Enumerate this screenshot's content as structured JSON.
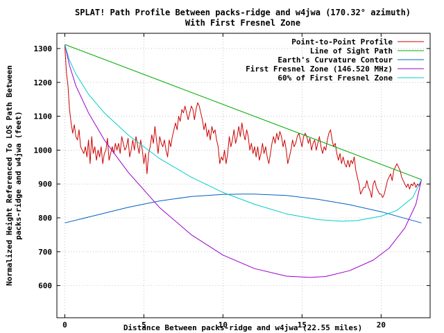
{
  "chart_data": {
    "type": "line",
    "title": "SPLAT! Path Profile Between packs-ridge and w4jwa (170.32° azimuth)",
    "subtitle": "With First Fresnel Zone",
    "xlabel": "Distance Between packs-ridge and w4jwa (22.55 miles)",
    "ylabel_lines": [
      "Normalized Height Referenced To LOS Path Between",
      "packs-ridge and w4jwa (feet)"
    ],
    "xlim": [
      -0.5,
      23.1
    ],
    "ylim": [
      505,
      1345
    ],
    "x_ticks": [
      0,
      5,
      10,
      15,
      20
    ],
    "y_ticks": [
      600,
      700,
      800,
      900,
      1000,
      1100,
      1200,
      1300
    ],
    "grid": true,
    "legend_position": "top-right",
    "series": [
      {
        "name": "Point-to-Point Profile",
        "color": "#cc0000",
        "points": [
          [
            0.0,
            1310
          ],
          [
            0.1,
            1230
          ],
          [
            0.2,
            1190
          ],
          [
            0.3,
            1120
          ],
          [
            0.4,
            1080
          ],
          [
            0.5,
            1050
          ],
          [
            0.6,
            1075
          ],
          [
            0.7,
            1040
          ],
          [
            0.8,
            1030
          ],
          [
            0.9,
            1060
          ],
          [
            1.0,
            1010
          ],
          [
            1.1,
            1000
          ],
          [
            1.2,
            990
          ],
          [
            1.3,
            1010
          ],
          [
            1.4,
            980
          ],
          [
            1.5,
            1030
          ],
          [
            1.6,
            960
          ],
          [
            1.7,
            1040
          ],
          [
            1.8,
            990
          ],
          [
            1.9,
            1010
          ],
          [
            2.0,
            970
          ],
          [
            2.1,
            1000
          ],
          [
            2.2,
            980
          ],
          [
            2.3,
            1010
          ],
          [
            2.4,
            960
          ],
          [
            2.5,
            990
          ],
          [
            2.6,
            1000
          ],
          [
            2.7,
            1035
          ],
          [
            2.8,
            970
          ],
          [
            2.9,
            990
          ],
          [
            3.0,
            1010
          ],
          [
            3.1,
            990
          ],
          [
            3.2,
            1020
          ],
          [
            3.3,
            1000
          ],
          [
            3.4,
            1020
          ],
          [
            3.5,
            990
          ],
          [
            3.6,
            1040
          ],
          [
            3.7,
            1020
          ],
          [
            3.8,
            1000
          ],
          [
            3.9,
            1010
          ],
          [
            4.0,
            1035
          ],
          [
            4.1,
            980
          ],
          [
            4.2,
            1000
          ],
          [
            4.3,
            1030
          ],
          [
            4.4,
            1000
          ],
          [
            4.5,
            1040
          ],
          [
            4.6,
            1015
          ],
          [
            4.7,
            990
          ],
          [
            4.8,
            1030
          ],
          [
            4.9,
            1000
          ],
          [
            5.0,
            960
          ],
          [
            5.1,
            990
          ],
          [
            5.2,
            930
          ],
          [
            5.3,
            990
          ],
          [
            5.4,
            1010
          ],
          [
            5.5,
            1045
          ],
          [
            5.6,
            1020
          ],
          [
            5.7,
            1070
          ],
          [
            5.8,
            1030
          ],
          [
            5.9,
            990
          ],
          [
            6.0,
            1040
          ],
          [
            6.1,
            1020
          ],
          [
            6.2,
            1010
          ],
          [
            6.3,
            1030
          ],
          [
            6.4,
            1000
          ],
          [
            6.5,
            980
          ],
          [
            6.6,
            1030
          ],
          [
            6.7,
            1010
          ],
          [
            6.8,
            1040
          ],
          [
            6.9,
            1060
          ],
          [
            7.0,
            1080
          ],
          [
            7.1,
            1060
          ],
          [
            7.2,
            1100
          ],
          [
            7.3,
            1085
          ],
          [
            7.4,
            1120
          ],
          [
            7.5,
            1110
          ],
          [
            7.6,
            1130
          ],
          [
            7.7,
            1110
          ],
          [
            7.8,
            1090
          ],
          [
            7.9,
            1110
          ],
          [
            8.0,
            1130
          ],
          [
            8.1,
            1120
          ],
          [
            8.2,
            1090
          ],
          [
            8.3,
            1120
          ],
          [
            8.4,
            1140
          ],
          [
            8.5,
            1130
          ],
          [
            8.6,
            1110
          ],
          [
            8.7,
            1090
          ],
          [
            8.8,
            1060
          ],
          [
            8.9,
            1080
          ],
          [
            9.0,
            1040
          ],
          [
            9.1,
            1060
          ],
          [
            9.2,
            1030
          ],
          [
            9.3,
            1070
          ],
          [
            9.4,
            1050
          ],
          [
            9.5,
            1060
          ],
          [
            9.6,
            1030
          ],
          [
            9.7,
            1010
          ],
          [
            9.8,
            960
          ],
          [
            9.9,
            980
          ],
          [
            10.0,
            970
          ],
          [
            10.1,
            1000
          ],
          [
            10.2,
            960
          ],
          [
            10.3,
            990
          ],
          [
            10.4,
            1040
          ],
          [
            10.5,
            1010
          ],
          [
            10.6,
            1030
          ],
          [
            10.7,
            1060
          ],
          [
            10.8,
            1020
          ],
          [
            10.9,
            1040
          ],
          [
            11.0,
            1070
          ],
          [
            11.1,
            1040
          ],
          [
            11.2,
            1080
          ],
          [
            11.3,
            1050
          ],
          [
            11.4,
            1030
          ],
          [
            11.5,
            1060
          ],
          [
            11.6,
            1040
          ],
          [
            11.7,
            1000
          ],
          [
            11.8,
            1020
          ],
          [
            11.9,
            990
          ],
          [
            12.0,
            1010
          ],
          [
            12.1,
            980
          ],
          [
            12.2,
            1010
          ],
          [
            12.3,
            970
          ],
          [
            12.4,
            990
          ],
          [
            12.5,
            1020
          ],
          [
            12.6,
            990
          ],
          [
            12.7,
            1010
          ],
          [
            12.8,
            980
          ],
          [
            12.9,
            960
          ],
          [
            13.0,
            990
          ],
          [
            13.1,
            1020
          ],
          [
            13.2,
            1040
          ],
          [
            13.3,
            1020
          ],
          [
            13.4,
            1050
          ],
          [
            13.5,
            1030
          ],
          [
            13.6,
            1055
          ],
          [
            13.7,
            1040
          ],
          [
            13.8,
            1010
          ],
          [
            13.9,
            1030
          ],
          [
            14.0,
            1000
          ],
          [
            14.1,
            960
          ],
          [
            14.2,
            980
          ],
          [
            14.3,
            1000
          ],
          [
            14.4,
            1030
          ],
          [
            14.5,
            1010
          ],
          [
            14.6,
            1020
          ],
          [
            14.7,
            1040
          ],
          [
            14.8,
            1050
          ],
          [
            14.9,
            1030
          ],
          [
            15.0,
            1010
          ],
          [
            15.1,
            1040
          ],
          [
            15.2,
            1050
          ],
          [
            15.3,
            1040
          ],
          [
            15.4,
            1020
          ],
          [
            15.5,
            1035
          ],
          [
            15.6,
            1000
          ],
          [
            15.7,
            1020
          ],
          [
            15.8,
            1030
          ],
          [
            15.9,
            1000
          ],
          [
            16.0,
            1020
          ],
          [
            16.1,
            1040
          ],
          [
            16.2,
            1010
          ],
          [
            16.3,
            990
          ],
          [
            16.4,
            1010
          ],
          [
            16.5,
            1000
          ],
          [
            16.6,
            1030
          ],
          [
            16.7,
            1050
          ],
          [
            16.8,
            1060
          ],
          [
            16.9,
            1030
          ],
          [
            17.0,
            1010
          ],
          [
            17.1,
            1020
          ],
          [
            17.2,
            990
          ],
          [
            17.3,
            970
          ],
          [
            17.4,
            990
          ],
          [
            17.5,
            960
          ],
          [
            17.6,
            980
          ],
          [
            17.7,
            960
          ],
          [
            17.8,
            950
          ],
          [
            17.9,
            970
          ],
          [
            18.0,
            950
          ],
          [
            18.1,
            970
          ],
          [
            18.2,
            960
          ],
          [
            18.3,
            980
          ],
          [
            18.4,
            940
          ],
          [
            18.5,
            920
          ],
          [
            18.6,
            900
          ],
          [
            18.7,
            870
          ],
          [
            18.8,
            880
          ],
          [
            18.9,
            890
          ],
          [
            19.0,
            890
          ],
          [
            19.1,
            910
          ],
          [
            19.2,
            890
          ],
          [
            19.3,
            880
          ],
          [
            19.4,
            860
          ],
          [
            19.5,
            900
          ],
          [
            19.6,
            910
          ],
          [
            19.7,
            890
          ],
          [
            19.8,
            880
          ],
          [
            19.9,
            870
          ],
          [
            20.0,
            870
          ],
          [
            20.1,
            860
          ],
          [
            20.2,
            870
          ],
          [
            20.3,
            890
          ],
          [
            20.4,
            910
          ],
          [
            20.5,
            920
          ],
          [
            20.6,
            930
          ],
          [
            20.7,
            910
          ],
          [
            20.8,
            940
          ],
          [
            20.9,
            950
          ],
          [
            21.0,
            960
          ],
          [
            21.1,
            950
          ],
          [
            21.2,
            940
          ],
          [
            21.3,
            920
          ],
          [
            21.4,
            910
          ],
          [
            21.5,
            900
          ],
          [
            21.6,
            890
          ],
          [
            21.7,
            900
          ],
          [
            21.8,
            885
          ],
          [
            21.9,
            900
          ],
          [
            22.0,
            895
          ],
          [
            22.1,
            905
          ],
          [
            22.2,
            890
          ],
          [
            22.3,
            900
          ],
          [
            22.4,
            895
          ],
          [
            22.55,
            910
          ]
        ]
      },
      {
        "name": "Line of Sight Path",
        "color": "#00aa00",
        "points": [
          [
            0.0,
            1312
          ],
          [
            22.55,
            913
          ]
        ]
      },
      {
        "name": "Earth's Curvature Contour",
        "color": "#0060c0",
        "points": [
          [
            0.0,
            785
          ],
          [
            2.0,
            808
          ],
          [
            4.0,
            831
          ],
          [
            6.0,
            850
          ],
          [
            8.0,
            863
          ],
          [
            10.0,
            869
          ],
          [
            11.3,
            870
          ],
          [
            12.0,
            870
          ],
          [
            14.0,
            866
          ],
          [
            16.0,
            855
          ],
          [
            18.0,
            839
          ],
          [
            20.0,
            818
          ],
          [
            22.55,
            785
          ]
        ]
      },
      {
        "name": "First Fresnel Zone (146.520 MHz)",
        "color": "#9900cc",
        "points": [
          [
            0.0,
            1312
          ],
          [
            0.3,
            1250
          ],
          [
            0.7,
            1190
          ],
          [
            1.5,
            1110
          ],
          [
            2.5,
            1030
          ],
          [
            4.0,
            935
          ],
          [
            6.0,
            830
          ],
          [
            8.0,
            750
          ],
          [
            10.0,
            690
          ],
          [
            12.0,
            650
          ],
          [
            14.0,
            628
          ],
          [
            15.5,
            624
          ],
          [
            16.5,
            627
          ],
          [
            18.0,
            644
          ],
          [
            19.5,
            675
          ],
          [
            20.5,
            710
          ],
          [
            21.5,
            770
          ],
          [
            22.2,
            840
          ],
          [
            22.55,
            913
          ]
        ]
      },
      {
        "name": "60% of First Fresnel Zone",
        "color": "#00cccc",
        "points": [
          [
            0.0,
            1312
          ],
          [
            0.3,
            1265
          ],
          [
            0.7,
            1225
          ],
          [
            1.5,
            1165
          ],
          [
            2.5,
            1110
          ],
          [
            4.0,
            1045
          ],
          [
            6.0,
            975
          ],
          [
            8.0,
            920
          ],
          [
            10.0,
            875
          ],
          [
            12.0,
            840
          ],
          [
            14.0,
            812
          ],
          [
            16.0,
            795
          ],
          [
            17.5,
            790
          ],
          [
            18.5,
            792
          ],
          [
            20.0,
            805
          ],
          [
            21.0,
            822
          ],
          [
            22.0,
            860
          ],
          [
            22.55,
            913
          ]
        ]
      }
    ]
  }
}
